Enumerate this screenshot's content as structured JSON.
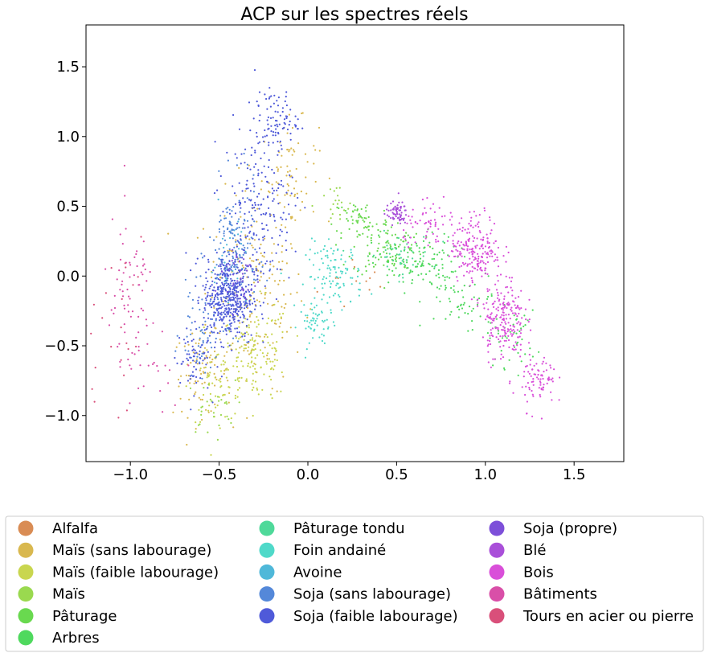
{
  "chart_data": {
    "type": "scatter",
    "title": "ACP sur les spectres réels",
    "xlabel": "",
    "ylabel": "",
    "xlim": [
      -1.25,
      1.78
    ],
    "ylim": [
      -1.33,
      1.8
    ],
    "x_ticks": [
      -1.0,
      -0.5,
      0.0,
      0.5,
      1.0,
      1.5
    ],
    "x_tick_labels": [
      "−1.0",
      "−0.5",
      "0.0",
      "0.5",
      "1.0",
      "1.5"
    ],
    "y_ticks": [
      1.5,
      1.0,
      0.5,
      0.0,
      -0.5,
      -1.0
    ],
    "y_tick_labels": [
      "1.5",
      "1.0",
      "0.5",
      "0.0",
      "−0.5",
      "−1.0"
    ],
    "grid": false,
    "legend_placement": "below",
    "series": [
      {
        "name": "Alfalfa",
        "color": "#d98c54",
        "clusters": [
          {
            "cx": 0.3,
            "cy": -0.05,
            "sx": 0.12,
            "sy": 0.12,
            "n": 12
          }
        ]
      },
      {
        "name": "Maïs (sans labourage)",
        "color": "#d9b84f",
        "clusters": [
          {
            "cx": -0.3,
            "cy": -0.1,
            "sx": 0.14,
            "sy": 0.35,
            "n": 180
          },
          {
            "cx": -0.1,
            "cy": 0.75,
            "sx": 0.08,
            "sy": 0.18,
            "n": 70
          },
          {
            "cx": -0.6,
            "cy": -0.7,
            "sx": 0.08,
            "sy": 0.15,
            "n": 80
          }
        ]
      },
      {
        "name": "Maïs (faible labourage)",
        "color": "#c9d64f",
        "clusters": [
          {
            "cx": -0.3,
            "cy": -0.55,
            "sx": 0.1,
            "sy": 0.18,
            "n": 150
          },
          {
            "cx": -0.5,
            "cy": -0.8,
            "sx": 0.08,
            "sy": 0.12,
            "n": 50
          }
        ]
      },
      {
        "name": "Maïs",
        "color": "#9ad94f",
        "clusters": [
          {
            "cx": -0.55,
            "cy": -0.95,
            "sx": 0.07,
            "sy": 0.1,
            "n": 30
          },
          {
            "cx": 0.15,
            "cy": 0.5,
            "sx": 0.06,
            "sy": 0.08,
            "n": 20
          }
        ]
      },
      {
        "name": "Pâturage",
        "color": "#69d94f",
        "clusters": [
          {
            "cx": 0.3,
            "cy": 0.4,
            "sx": 0.08,
            "sy": 0.08,
            "n": 60
          },
          {
            "cx": 0.45,
            "cy": 0.2,
            "sx": 0.1,
            "sy": 0.1,
            "n": 90
          }
        ]
      },
      {
        "name": "Arbres",
        "color": "#4fd95e",
        "clusters": [
          {
            "cx": 0.6,
            "cy": 0.1,
            "sx": 0.12,
            "sy": 0.1,
            "n": 120
          },
          {
            "cx": 0.9,
            "cy": -0.2,
            "sx": 0.12,
            "sy": 0.12,
            "n": 60
          },
          {
            "cx": 1.15,
            "cy": -0.45,
            "sx": 0.07,
            "sy": 0.1,
            "n": 40
          }
        ]
      },
      {
        "name": "Pâturage tondu",
        "color": "#4fd99a",
        "clusters": [
          {
            "cx": 0.5,
            "cy": 0.15,
            "sx": 0.1,
            "sy": 0.08,
            "n": 40
          }
        ]
      },
      {
        "name": "Foin andainé",
        "color": "#4fd9c9",
        "clusters": [
          {
            "cx": 0.15,
            "cy": 0.0,
            "sx": 0.08,
            "sy": 0.12,
            "n": 110
          },
          {
            "cx": 0.05,
            "cy": -0.35,
            "sx": 0.05,
            "sy": 0.08,
            "n": 50
          }
        ]
      },
      {
        "name": "Avoine",
        "color": "#4fb8d9",
        "clusters": [
          {
            "cx": -0.45,
            "cy": 0.1,
            "sx": 0.05,
            "sy": 0.2,
            "n": 40
          }
        ]
      },
      {
        "name": "Soja (sans labourage)",
        "color": "#5488d9",
        "clusters": [
          {
            "cx": -0.42,
            "cy": 0.15,
            "sx": 0.07,
            "sy": 0.25,
            "n": 150
          },
          {
            "cx": -0.6,
            "cy": -0.4,
            "sx": 0.06,
            "sy": 0.15,
            "n": 60
          }
        ]
      },
      {
        "name": "Soja (faible labourage)",
        "color": "#4f5ad9",
        "clusters": [
          {
            "cx": -0.45,
            "cy": -0.15,
            "sx": 0.07,
            "sy": 0.15,
            "n": 450
          },
          {
            "cx": -0.28,
            "cy": 0.5,
            "sx": 0.1,
            "sy": 0.3,
            "n": 200
          },
          {
            "cx": -0.18,
            "cy": 1.12,
            "sx": 0.06,
            "sy": 0.1,
            "n": 80
          },
          {
            "cx": -0.65,
            "cy": -0.6,
            "sx": 0.05,
            "sy": 0.12,
            "n": 60
          }
        ]
      },
      {
        "name": "Soja (propre)",
        "color": "#7d4fd9",
        "clusters": [
          {
            "cx": -0.4,
            "cy": 0.0,
            "sx": 0.06,
            "sy": 0.12,
            "n": 40
          }
        ]
      },
      {
        "name": "Blé",
        "color": "#a94fd9",
        "clusters": [
          {
            "cx": 0.5,
            "cy": 0.45,
            "sx": 0.03,
            "sy": 0.04,
            "n": 70
          }
        ]
      },
      {
        "name": "Bois",
        "color": "#d94fd9",
        "clusters": [
          {
            "cx": 0.95,
            "cy": 0.2,
            "sx": 0.07,
            "sy": 0.12,
            "n": 200
          },
          {
            "cx": 1.1,
            "cy": -0.3,
            "sx": 0.06,
            "sy": 0.15,
            "n": 200
          },
          {
            "cx": 1.3,
            "cy": -0.75,
            "sx": 0.05,
            "sy": 0.1,
            "n": 80
          },
          {
            "cx": 0.7,
            "cy": 0.35,
            "sx": 0.08,
            "sy": 0.08,
            "n": 60
          }
        ]
      },
      {
        "name": "Bâtiments",
        "color": "#d94fa8",
        "clusters": [
          {
            "cx": -1.0,
            "cy": -0.2,
            "sx": 0.08,
            "sy": 0.3,
            "n": 70
          },
          {
            "cx": -0.9,
            "cy": -0.7,
            "sx": 0.1,
            "sy": 0.15,
            "n": 20
          }
        ]
      },
      {
        "name": "Tours en acier ou pierre",
        "color": "#d94f7a",
        "clusters": [
          {
            "cx": -1.1,
            "cy": -0.4,
            "sx": 0.12,
            "sy": 0.35,
            "n": 25
          }
        ]
      }
    ]
  }
}
